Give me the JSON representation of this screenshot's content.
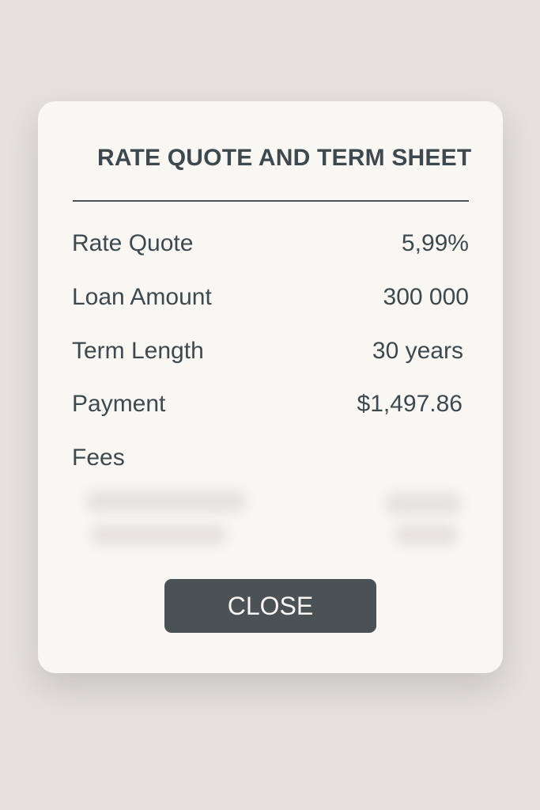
{
  "dialog": {
    "title": "RATE QUOTE AND TERM SHEET",
    "rows": [
      {
        "label": "Rate Quote",
        "value": "5,99%"
      },
      {
        "label": "Loan Amount",
        "value": "300 000"
      },
      {
        "label": "Term Length",
        "value": "30 years"
      },
      {
        "label": "Payment",
        "value": "$1,497.86"
      },
      {
        "label": "Fees",
        "value": ""
      }
    ],
    "close_label": "CLOSE"
  },
  "colors": {
    "background": "#e4e1dd",
    "card": "#f8f7f4",
    "text": "#3f494d",
    "button": "#4a5256"
  }
}
